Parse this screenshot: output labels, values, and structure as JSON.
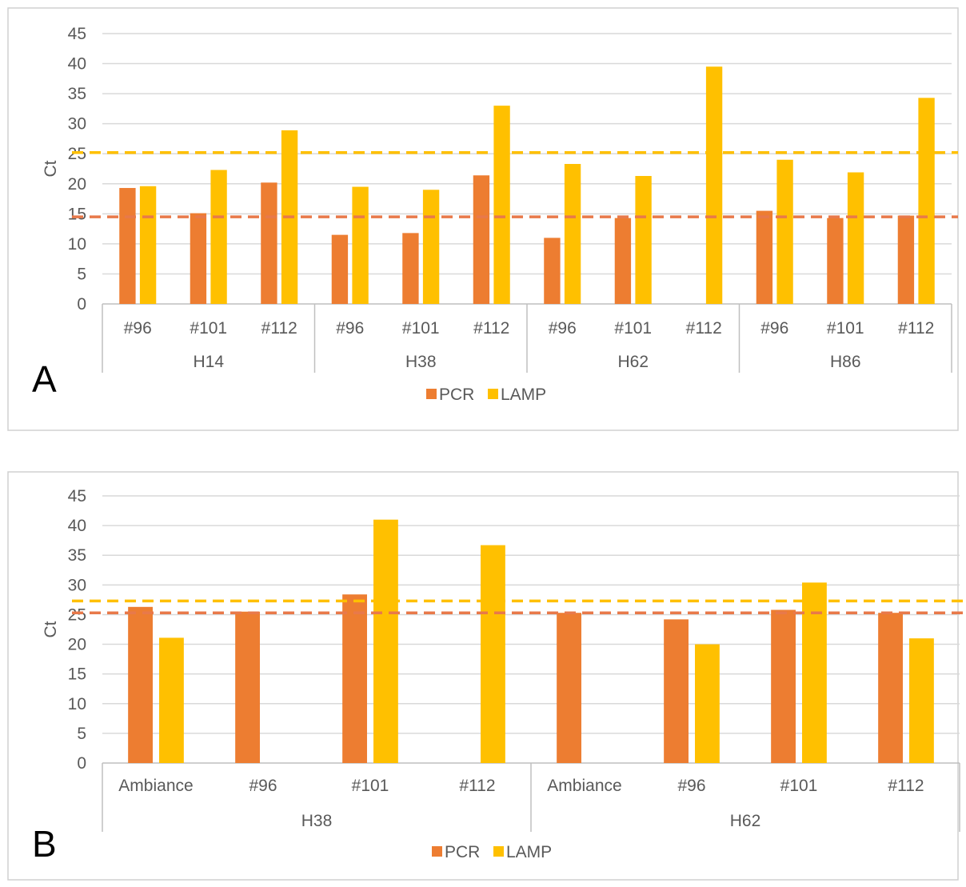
{
  "colors": {
    "pcr": "#ED7D31",
    "lamp": "#FFC000",
    "pcr_threshold": "#E8794A",
    "lamp_threshold": "#FFC000",
    "grid": "#D9D9D9",
    "axis_text": "#595959",
    "frame": "#D0D0D0"
  },
  "chart_data": [
    {
      "type": "bar",
      "panel_label": "A",
      "ylabel": "Ct",
      "xlabel": "",
      "ylim": [
        0,
        45
      ],
      "yticks": [
        "0",
        "5",
        "10",
        "15",
        "20",
        "25",
        "30",
        "35",
        "40",
        "45"
      ],
      "grid": true,
      "legend_position": "bottom",
      "groups": [
        "H14",
        "H38",
        "H62",
        "H86"
      ],
      "categories": [
        "#96",
        "#101",
        "#112",
        "#96",
        "#101",
        "#112",
        "#96",
        "#101",
        "#112",
        "#96",
        "#101",
        "#112"
      ],
      "series": [
        {
          "name": "PCR",
          "values": [
            19.3,
            15.1,
            20.2,
            11.5,
            11.8,
            21.4,
            11.0,
            14.3,
            null,
            15.5,
            14.3,
            14.7
          ]
        },
        {
          "name": "LAMP",
          "values": [
            19.6,
            22.3,
            28.9,
            19.5,
            19.0,
            33.0,
            23.3,
            21.3,
            39.5,
            24.0,
            21.9,
            34.3
          ]
        }
      ],
      "thresholds": [
        {
          "series": "PCR",
          "value": 14.5
        },
        {
          "series": "LAMP",
          "value": 25.2
        }
      ]
    },
    {
      "type": "bar",
      "panel_label": "B",
      "ylabel": "Ct",
      "xlabel": "",
      "ylim": [
        0,
        45
      ],
      "yticks": [
        "0",
        "5",
        "10",
        "15",
        "20",
        "25",
        "30",
        "35",
        "40",
        "45"
      ],
      "grid": true,
      "legend_position": "bottom",
      "groups": [
        "H38",
        "H62"
      ],
      "categories": [
        "Ambiance",
        "#96",
        "#101",
        "#112",
        "Ambiance",
        "#96",
        "#101",
        "#112"
      ],
      "series": [
        {
          "name": "PCR",
          "values": [
            26.3,
            25.5,
            28.4,
            null,
            25.3,
            24.2,
            25.8,
            25.3
          ]
        },
        {
          "name": "LAMP",
          "values": [
            21.1,
            null,
            41.0,
            36.7,
            null,
            20.0,
            30.4,
            21.0
          ]
        }
      ],
      "thresholds": [
        {
          "series": "PCR",
          "value": 25.3
        },
        {
          "series": "LAMP",
          "value": 27.3
        }
      ]
    }
  ]
}
